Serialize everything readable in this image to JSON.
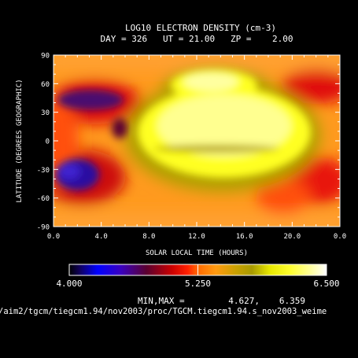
{
  "chart_data": {
    "type": "heatmap",
    "title": "LOG10 ELECTRON DENSITY (cm-3)",
    "subtitle": "DAY = 326   UT = 21.00   ZP =    2.00",
    "xlabel": "SOLAR LOCAL TIME (HOURS)",
    "ylabel": "LATITUDE (DEGREES GEOGRAPHIC)",
    "xlim": [
      0,
      24
    ],
    "ylim": [
      -90,
      90
    ],
    "x_ticks": [
      "0.0",
      "4.0",
      "8.0",
      "12.0",
      "16.0",
      "20.0",
      "0.0"
    ],
    "x_tick_values": [
      0,
      4,
      8,
      12,
      16,
      20,
      24
    ],
    "y_ticks": [
      "90",
      "60",
      "30",
      "0",
      "-30",
      "-60",
      "-90"
    ],
    "y_tick_values": [
      90,
      60,
      30,
      0,
      -30,
      -60,
      -90
    ],
    "colorbar": {
      "min": 4.0,
      "max": 6.5,
      "labels": [
        "4.000",
        "5.250",
        "6.500"
      ],
      "label_values": [
        4.0,
        5.25,
        6.5
      ],
      "colors": [
        "#0000ff",
        "#000000",
        "#ff0000",
        "#ff8800",
        "#a89a00",
        "#ffff00",
        "#ffffff"
      ]
    },
    "minmax_label": "MIN,MAX =",
    "min_value": "4.627,",
    "max_value": "6.359",
    "file_path": "/aim2/tgcm/tiegcm1.94/nov2003/proc/TGCM.tiegcm1.94.s_nov2003_weime",
    "features": [
      {
        "lt": 12.3,
        "lat": 10,
        "value": 6.25
      },
      {
        "lt": 12.0,
        "lat": 60,
        "value": 6.2
      },
      {
        "lt": 12.0,
        "lat": -12,
        "value": 5.55
      },
      {
        "lt": 2.0,
        "lat": 43,
        "value": 5.05
      },
      {
        "lt": 1.5,
        "lat": -28,
        "value": 4.65
      },
      {
        "lt": 5.3,
        "lat": 10,
        "value": 4.95
      },
      {
        "lt": 21.5,
        "lat": 58,
        "value": 5.3
      },
      {
        "lt": 21.5,
        "lat": -28,
        "value": 5.35
      }
    ]
  }
}
